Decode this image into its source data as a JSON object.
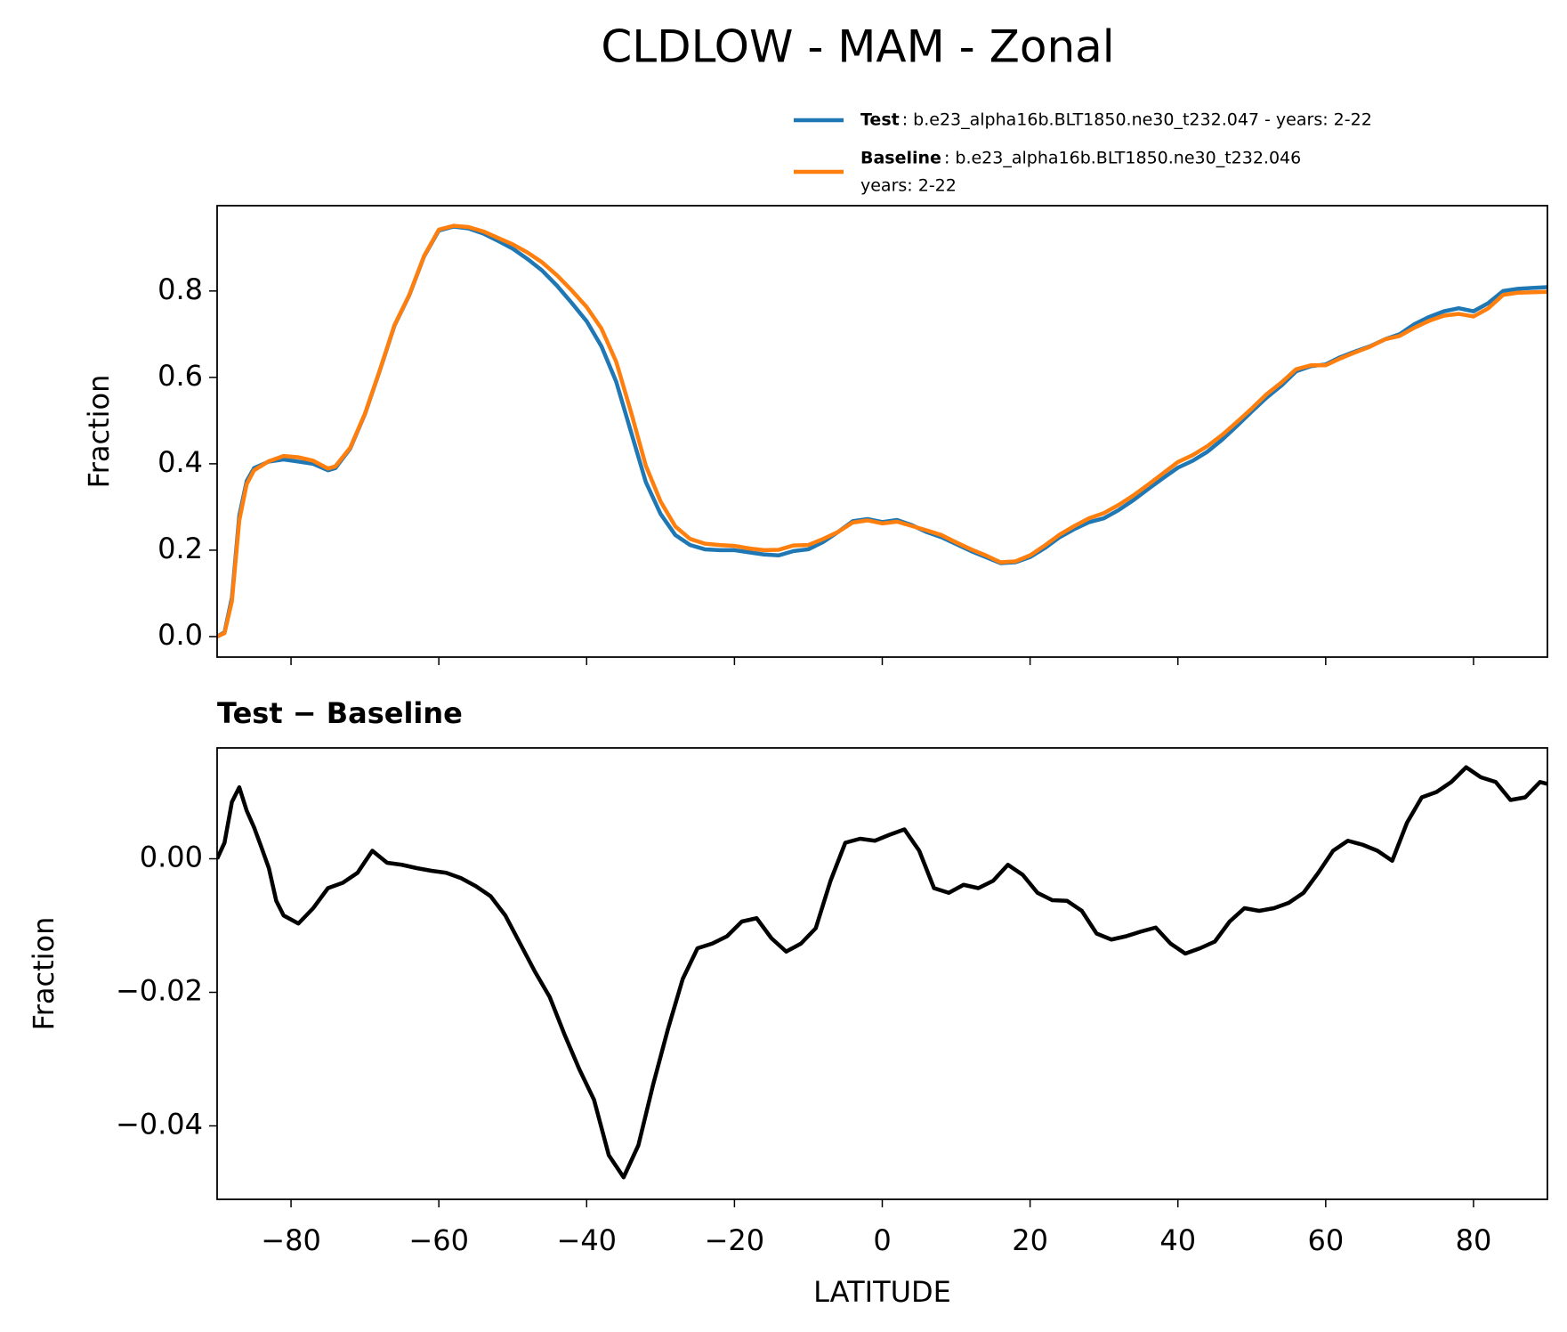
{
  "chart_data": [
    {
      "type": "line",
      "title": "CLDLOW - MAM - Zonal",
      "ylabel": "Fraction",
      "x": [
        -90,
        -89,
        -88,
        -87,
        -86,
        -85,
        -83,
        -81,
        -79,
        -77,
        -75,
        -74,
        -72,
        -70,
        -68,
        -66,
        -64,
        -62,
        -60,
        -58,
        -56,
        -54,
        -52,
        -50,
        -48,
        -46,
        -44,
        -42,
        -40,
        -38,
        -36,
        -34,
        -32,
        -30,
        -28,
        -26,
        -24,
        -22,
        -20,
        -18,
        -16,
        -14,
        -12,
        -10,
        -8,
        -6,
        -4,
        -2,
        0,
        2,
        4,
        6,
        8,
        10,
        12,
        14,
        16,
        18,
        20,
        22,
        24,
        26,
        28,
        30,
        32,
        34,
        36,
        38,
        40,
        42,
        44,
        46,
        48,
        50,
        52,
        54,
        56,
        58,
        60,
        62,
        64,
        66,
        68,
        70,
        72,
        74,
        76,
        78,
        80,
        82,
        84,
        86,
        88,
        90
      ],
      "series": [
        {
          "name": "Test",
          "label_lines": [
            ": b.e23_alpha16b.BLT1850.ne30_t232.047 - years: 2-22"
          ],
          "color": "#1f77b4",
          "values": [
            0.0,
            0.01,
            0.09,
            0.28,
            0.36,
            0.39,
            0.405,
            0.41,
            0.405,
            0.4,
            0.385,
            0.39,
            0.435,
            0.515,
            0.615,
            0.72,
            0.79,
            0.88,
            0.94,
            0.949,
            0.945,
            0.933,
            0.916,
            0.898,
            0.874,
            0.847,
            0.812,
            0.772,
            0.73,
            0.672,
            0.59,
            0.474,
            0.358,
            0.284,
            0.235,
            0.212,
            0.202,
            0.2,
            0.2,
            0.195,
            0.19,
            0.188,
            0.198,
            0.202,
            0.219,
            0.242,
            0.267,
            0.272,
            0.265,
            0.27,
            0.258,
            0.242,
            0.23,
            0.214,
            0.198,
            0.184,
            0.17,
            0.172,
            0.184,
            0.205,
            0.23,
            0.249,
            0.265,
            0.274,
            0.293,
            0.316,
            0.342,
            0.367,
            0.391,
            0.407,
            0.428,
            0.456,
            0.488,
            0.521,
            0.553,
            0.581,
            0.614,
            0.626,
            0.63,
            0.647,
            0.66,
            0.672,
            0.688,
            0.7,
            0.723,
            0.74,
            0.753,
            0.76,
            0.753,
            0.772,
            0.8,
            0.805,
            0.807,
            0.809
          ]
        },
        {
          "name": "Baseline",
          "label_lines": [
            ": b.e23_alpha16b.BLT1850.ne30_t232.046",
            "years: 2-22"
          ],
          "color": "#ff7f0e",
          "values": [
            0.0,
            0.008,
            0.082,
            0.269,
            0.353,
            0.385,
            0.406,
            0.418,
            0.415,
            0.407,
            0.389,
            0.394,
            0.437,
            0.516,
            0.616,
            0.721,
            0.791,
            0.881,
            0.942,
            0.951,
            0.948,
            0.938,
            0.923,
            0.908,
            0.889,
            0.866,
            0.836,
            0.801,
            0.763,
            0.713,
            0.636,
            0.52,
            0.396,
            0.313,
            0.255,
            0.226,
            0.215,
            0.212,
            0.21,
            0.204,
            0.2,
            0.201,
            0.211,
            0.212,
            0.226,
            0.242,
            0.264,
            0.269,
            0.262,
            0.266,
            0.256,
            0.246,
            0.235,
            0.218,
            0.202,
            0.188,
            0.172,
            0.174,
            0.188,
            0.211,
            0.236,
            0.256,
            0.274,
            0.286,
            0.305,
            0.327,
            0.352,
            0.378,
            0.404,
            0.42,
            0.441,
            0.467,
            0.497,
            0.528,
            0.561,
            0.588,
            0.619,
            0.628,
            0.628,
            0.644,
            0.658,
            0.671,
            0.688,
            0.696,
            0.715,
            0.731,
            0.743,
            0.747,
            0.741,
            0.76,
            0.791,
            0.796,
            0.797,
            0.798
          ]
        }
      ],
      "xlim": [
        -90,
        90
      ],
      "xticks": [
        {
          "value": -80,
          "label": "−80"
        },
        {
          "value": -60,
          "label": "−60"
        },
        {
          "value": -40,
          "label": "−40"
        },
        {
          "value": -20,
          "label": "−20"
        },
        0,
        20,
        40,
        60,
        80
      ],
      "show_xtick_labels": false,
      "ylim": [
        -0.0475,
        0.9975
      ],
      "yticks": [
        {
          "value": 0,
          "label": "0.0"
        },
        0.2,
        0.4,
        0.6,
        0.8
      ],
      "legend": "top-right-outside"
    },
    {
      "type": "line",
      "title": "Test − Baseline",
      "ylabel": "Fraction",
      "xlabel": "LATITUDE",
      "x": [
        -90,
        -89,
        -88,
        -87,
        -86,
        -85,
        -84,
        -83,
        -82,
        -81,
        -79,
        -77,
        -75,
        -73,
        -71,
        -69,
        -67,
        -65,
        -63,
        -61,
        -59,
        -57,
        -55,
        -53,
        -51,
        -49,
        -47,
        -45,
        -43,
        -41,
        -39,
        -37,
        -35,
        -33,
        -31,
        -29,
        -27,
        -25,
        -23,
        -21,
        -19,
        -17,
        -15,
        -13,
        -11,
        -9,
        -7,
        -5,
        -3,
        -1,
        1,
        3,
        5,
        7,
        9,
        11,
        13,
        15,
        17,
        19,
        21,
        23,
        25,
        27,
        29,
        31,
        33,
        35,
        37,
        39,
        41,
        43,
        45,
        47,
        49,
        51,
        53,
        55,
        57,
        59,
        61,
        63,
        65,
        67,
        69,
        71,
        73,
        75,
        77,
        79,
        81,
        83,
        85,
        87,
        89,
        90
      ],
      "series": [
        {
          "name": "Test − Baseline",
          "color": "#000000",
          "values": [
            0.0,
            0.0024,
            0.0085,
            0.0107,
            0.0072,
            0.0047,
            0.0017,
            -0.0014,
            -0.0063,
            -0.0085,
            -0.0097,
            -0.0074,
            -0.0044,
            -0.0036,
            -0.0021,
            0.0012,
            -0.0006,
            -0.0009,
            -0.0014,
            -0.0018,
            -0.0021,
            -0.0029,
            -0.0041,
            -0.0056,
            -0.0085,
            -0.0127,
            -0.0169,
            -0.0207,
            -0.0263,
            -0.0315,
            -0.0361,
            -0.0444,
            -0.0477,
            -0.0429,
            -0.0338,
            -0.0255,
            -0.018,
            -0.0134,
            -0.0127,
            -0.0116,
            -0.0094,
            -0.0089,
            -0.0119,
            -0.0139,
            -0.0127,
            -0.0104,
            -0.0033,
            0.0024,
            0.003,
            0.0027,
            0.0036,
            0.0044,
            0.0012,
            -0.0044,
            -0.0051,
            -0.0039,
            -0.0044,
            -0.0033,
            -0.0009,
            -0.0024,
            -0.0051,
            -0.0062,
            -0.0063,
            -0.0078,
            -0.0112,
            -0.0121,
            -0.0116,
            -0.0109,
            -0.0103,
            -0.0127,
            -0.0142,
            -0.0134,
            -0.0124,
            -0.0094,
            -0.0074,
            -0.0078,
            -0.0074,
            -0.0066,
            -0.0051,
            -0.0021,
            0.0012,
            0.0027,
            0.0021,
            0.0012,
            -0.0003,
            0.0054,
            0.0092,
            0.01,
            0.0115,
            0.0137,
            0.0122,
            0.0115,
            0.0088,
            0.0092,
            0.0115,
            0.0112
          ]
        }
      ],
      "xlim": [
        -90,
        90
      ],
      "xticks": [
        {
          "value": -80,
          "label": "−80"
        },
        {
          "value": -60,
          "label": "−60"
        },
        {
          "value": -40,
          "label": "−40"
        },
        {
          "value": -20,
          "label": "−20"
        },
        0,
        20,
        40,
        60,
        80
      ],
      "show_xtick_labels": true,
      "ylim": [
        -0.051,
        0.0166
      ],
      "yticks": [
        {
          "value": 0,
          "label": "0.00"
        },
        {
          "value": -0.02,
          "label": "−0.02"
        },
        {
          "value": -0.04,
          "label": "−0.04"
        }
      ]
    }
  ]
}
